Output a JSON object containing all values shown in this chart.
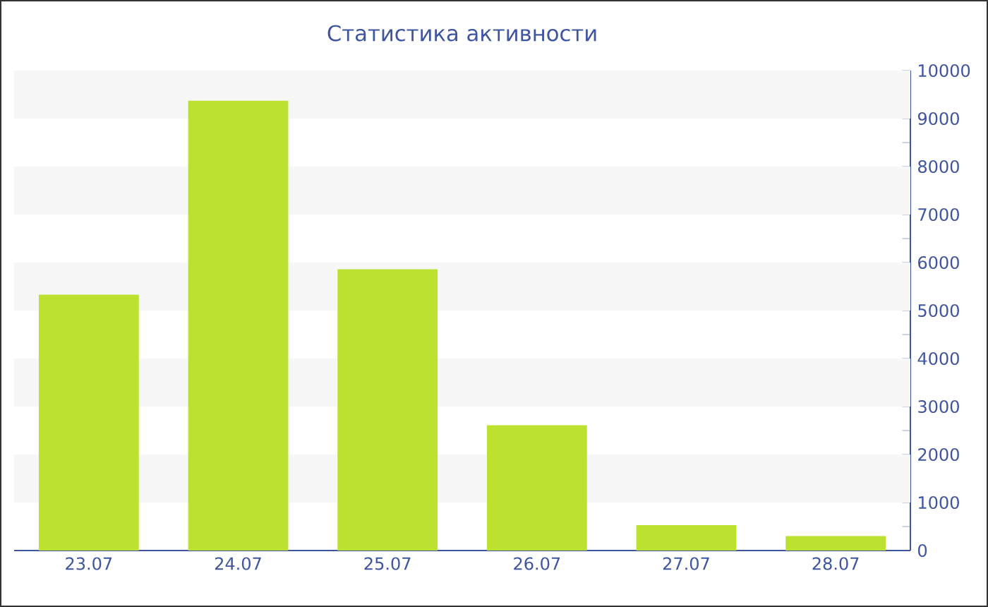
{
  "chart_data": {
    "type": "bar",
    "title": "Статистика активности",
    "categories": [
      "23.07",
      "24.07",
      "25.07",
      "26.07",
      "27.07",
      "28.07"
    ],
    "values": [
      5330,
      9370,
      5860,
      2610,
      530,
      300
    ],
    "color": "#bce22f",
    "ylim": [
      0,
      10000
    ],
    "yticks": [
      0,
      {
        "value": 500,
        "label": null
      },
      1000,
      {
        "value": 1500,
        "label": null
      },
      2000,
      {
        "value": 2500,
        "label": null
      },
      3000,
      {
        "value": 3500,
        "label": null
      },
      4000,
      {
        "value": 4500,
        "label": null
      },
      5000,
      {
        "value": 5500,
        "label": null
      },
      6000,
      {
        "value": 6500,
        "label": null
      },
      7000,
      {
        "value": 7500,
        "label": null
      },
      8000,
      {
        "value": 8500,
        "label": null
      },
      9000,
      {
        "value": 9500,
        "label": null
      },
      10000
    ],
    "bands": [
      {
        "axis": "y",
        "from": 1000,
        "to": 2000,
        "color": "#f7f7f7"
      },
      {
        "axis": "y",
        "from": 3000,
        "to": 4000,
        "color": "#f7f7f7"
      },
      {
        "axis": "y",
        "from": 5000,
        "to": 6000,
        "color": "#f7f7f7"
      },
      {
        "axis": "y",
        "from": 7000,
        "to": 8000,
        "color": "#f7f7f7"
      },
      {
        "axis": "y",
        "from": 9000,
        "to": 10000,
        "color": "#f7f7f7"
      }
    ]
  }
}
